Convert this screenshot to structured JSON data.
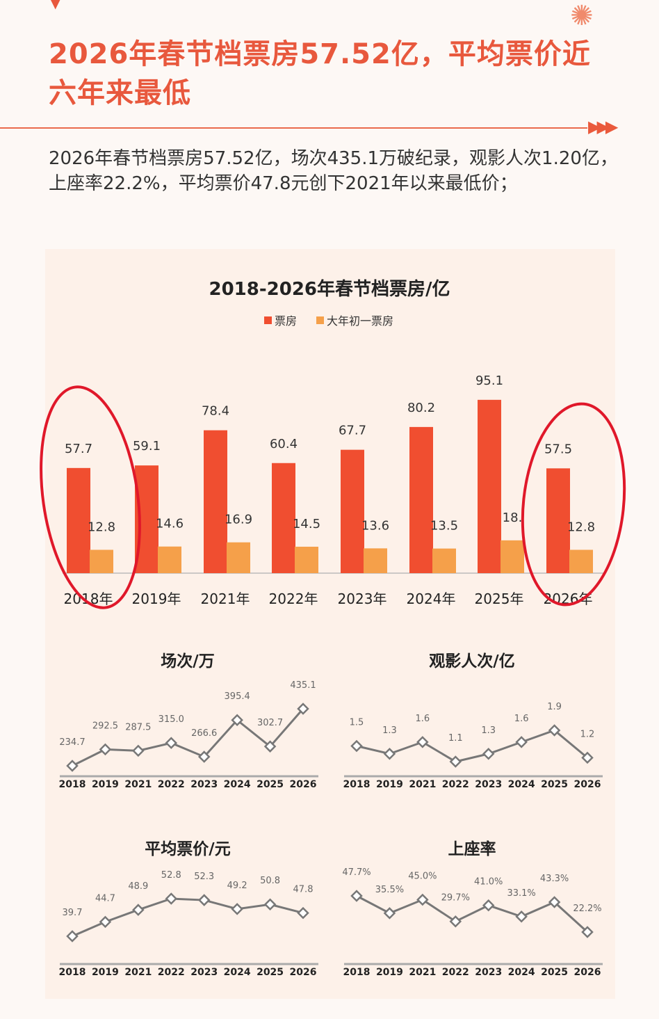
{
  "header": {
    "title": "2026年春节档票房57.52亿，平均票价近六年来最低",
    "intro": "2026年春节档票房57.52亿，场次435.1万破纪录，观影人次1.20亿，上座率22.2%，平均票价47.8元创下2021年以来最低价；"
  },
  "colors": {
    "accent": "#e8583d",
    "box_office": "#f04e30",
    "day_one": "#f5a04a",
    "line": "#777777",
    "annotation": "#e0182a"
  },
  "chart_data": [
    {
      "type": "bar",
      "title": "2018-2026年春节档票房/亿",
      "categories": [
        "2018年",
        "2019年",
        "2021年",
        "2022年",
        "2023年",
        "2024年",
        "2025年",
        "2026年"
      ],
      "series": [
        {
          "name": "票房",
          "values": [
            57.7,
            59.1,
            78.4,
            60.4,
            67.7,
            80.2,
            95.1,
            57.5
          ],
          "labels": [
            "57.7",
            "59.1",
            "78.4",
            "60.4",
            "67.7",
            "80.2",
            "95.1",
            "57.5"
          ]
        },
        {
          "name": "大年初一票房",
          "values": [
            12.8,
            14.6,
            16.9,
            14.5,
            13.6,
            13.5,
            18.0,
            12.8
          ],
          "labels": [
            "12.8",
            "14.6",
            "16.9",
            "14.5",
            "13.6",
            "13.5",
            "18.",
            "12.8"
          ]
        }
      ],
      "legend": "top-center"
    },
    {
      "type": "line",
      "title": "场次/万",
      "categories": [
        "2018",
        "2019",
        "2021",
        "2022",
        "2023",
        "2024",
        "2025",
        "2026"
      ],
      "values": [
        234.7,
        292.5,
        287.5,
        315.0,
        266.6,
        395.4,
        302.7,
        435.1
      ],
      "labels": [
        "234.7",
        "292.5",
        "287.5",
        "315.0",
        "266.6",
        "395.4",
        "302.7",
        "435.1"
      ]
    },
    {
      "type": "line",
      "title": "观影人次/亿",
      "categories": [
        "2018",
        "2019",
        "2021",
        "2022",
        "2023",
        "2024",
        "2025",
        "2026"
      ],
      "values": [
        1.5,
        1.3,
        1.6,
        1.1,
        1.3,
        1.6,
        1.9,
        1.2
      ],
      "labels": [
        "1.5",
        "1.3",
        "1.6",
        "1.1",
        "1.3",
        "1.6",
        "1.9",
        "1.2"
      ]
    },
    {
      "type": "line",
      "title": "平均票价/元",
      "categories": [
        "2018",
        "2019",
        "2021",
        "2022",
        "2023",
        "2024",
        "2025",
        "2026"
      ],
      "values": [
        39.7,
        44.7,
        48.9,
        52.8,
        52.3,
        49.2,
        50.8,
        47.8
      ],
      "labels": [
        "39.7",
        "44.7",
        "48.9",
        "52.8",
        "52.3",
        "49.2",
        "50.8",
        "47.8"
      ]
    },
    {
      "type": "line",
      "title": "上座率",
      "categories": [
        "2018",
        "2019",
        "2021",
        "2022",
        "2023",
        "2024",
        "2025",
        "2026"
      ],
      "values": [
        47.7,
        35.5,
        45.0,
        29.7,
        41.0,
        33.1,
        43.3,
        22.2
      ],
      "labels": [
        "47.7%",
        "35.5%",
        "45.0%",
        "29.7%",
        "41.0%",
        "33.1%",
        "43.3%",
        "22.2%"
      ]
    }
  ]
}
